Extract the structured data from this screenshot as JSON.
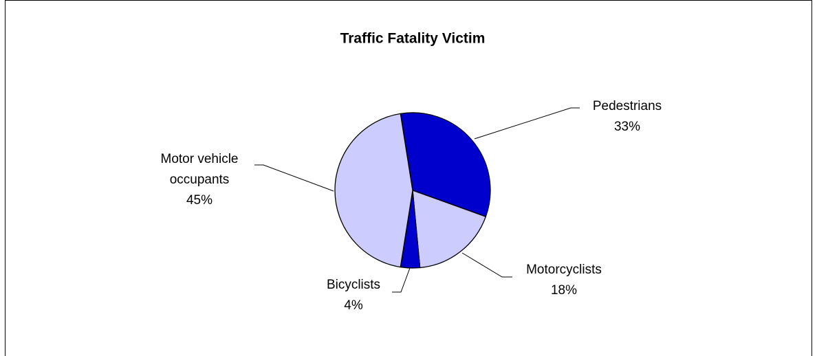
{
  "chart_data": {
    "type": "pie",
    "title": "Traffic Fatality Victim",
    "categories": [
      "Pedestrians",
      "Motorcyclists",
      "Bicyclists",
      "Motor vehicle occupants"
    ],
    "values": [
      33,
      18,
      4,
      45
    ],
    "value_labels": [
      "33%",
      "18%",
      "4%",
      "45%"
    ],
    "colors": [
      "#0000cc",
      "#ccccff",
      "#0000cc",
      "#ccccff"
    ]
  }
}
